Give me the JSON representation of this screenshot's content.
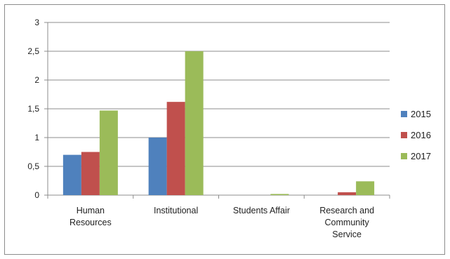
{
  "chart_data": {
    "type": "bar",
    "categories": [
      [
        "Human",
        "Resources"
      ],
      [
        "Institutional"
      ],
      [
        "Students Affair"
      ],
      [
        "Research and",
        "Community",
        "Service"
      ]
    ],
    "series": [
      {
        "name": "2015",
        "color": "#4f81bd",
        "values": [
          0.7,
          1.0,
          0.0,
          0.0
        ]
      },
      {
        "name": "2016",
        "color": "#c0504d",
        "values": [
          0.75,
          1.62,
          0.0,
          0.05
        ]
      },
      {
        "name": "2017",
        "color": "#9bbb59",
        "values": [
          1.47,
          2.5,
          0.02,
          0.24
        ]
      }
    ],
    "yticks": [
      "0",
      "0,5",
      "1",
      "1,5",
      "2",
      "2,5",
      "3"
    ],
    "ylim": [
      0,
      3
    ],
    "grid": true,
    "legend_position": "right"
  }
}
